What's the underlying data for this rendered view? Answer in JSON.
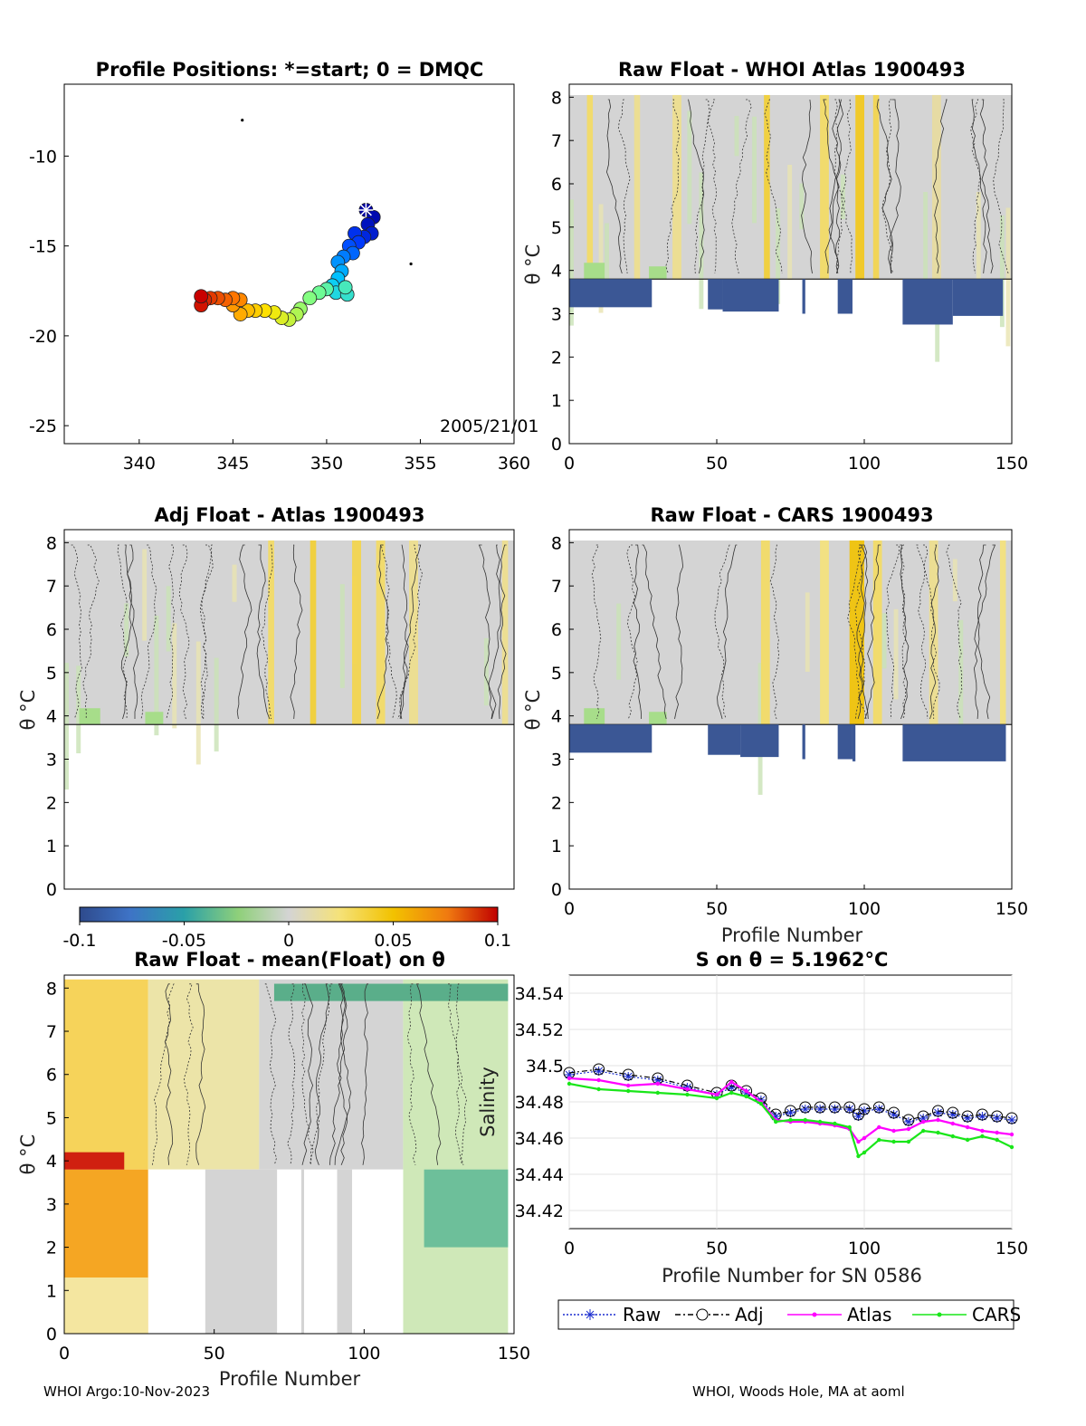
{
  "colors": {
    "cold": "#3b5795",
    "grey": "#d4d4d4",
    "raw": "#1a2ccf",
    "adj": "#000000",
    "atlas": "#ff00ff",
    "cars": "#19e619"
  },
  "footer": {
    "left": "WHOI Argo:10-Nov-2023",
    "right": "WHOI, Woods Hole, MA at aoml"
  },
  "colorbar": {
    "ticks": [
      "-0.1",
      "-0.05",
      "0",
      "0.05",
      "0.1"
    ],
    "range": [
      -0.1,
      0.1
    ]
  },
  "chart_data": [
    {
      "id": "map",
      "type": "scatter",
      "title": "Profile Positions: *=start; 0 = DMQC",
      "xlim": [
        336,
        360
      ],
      "ylim": [
        -26,
        -6
      ],
      "xticks": [
        "340",
        "345",
        "350",
        "355",
        "360"
      ],
      "yticks": [
        "-10",
        "-15",
        "-20",
        "-25"
      ],
      "annotation": "2005/21/01",
      "track": [
        [
          352.1,
          -13.0
        ],
        [
          352.5,
          -13.4
        ],
        [
          352.2,
          -13.8
        ],
        [
          352.4,
          -14.3
        ],
        [
          352.0,
          -14.5
        ],
        [
          351.5,
          -14.3
        ],
        [
          351.7,
          -14.8
        ],
        [
          351.2,
          -15.0
        ],
        [
          351.4,
          -15.4
        ],
        [
          350.9,
          -15.6
        ],
        [
          350.6,
          -15.9
        ],
        [
          350.8,
          -16.4
        ],
        [
          350.6,
          -16.8
        ],
        [
          350.3,
          -17.2
        ],
        [
          350.5,
          -17.6
        ],
        [
          351.1,
          -17.7
        ],
        [
          351.0,
          -17.3
        ],
        [
          350.0,
          -17.4
        ],
        [
          349.6,
          -17.6
        ],
        [
          349.1,
          -17.9
        ],
        [
          348.6,
          -18.5
        ],
        [
          348.4,
          -18.8
        ],
        [
          348.0,
          -19.1
        ],
        [
          347.6,
          -19.0
        ],
        [
          347.2,
          -18.7
        ],
        [
          346.7,
          -18.6
        ],
        [
          346.2,
          -18.6
        ],
        [
          345.8,
          -18.6
        ],
        [
          345.4,
          -18.8
        ],
        [
          345.0,
          -18.3
        ],
        [
          345.4,
          -18.0
        ],
        [
          345.0,
          -17.9
        ],
        [
          344.6,
          -18.0
        ],
        [
          344.2,
          -17.9
        ],
        [
          343.8,
          -17.9
        ],
        [
          343.5,
          -18.0
        ],
        [
          343.3,
          -18.3
        ],
        [
          343.3,
          -17.8
        ]
      ],
      "start": [
        352.1,
        -13.0
      ],
      "outliers": [
        [
          345.5,
          -8.0
        ],
        [
          354.5,
          -16.0
        ]
      ]
    },
    {
      "id": "p1",
      "type": "heatmap",
      "title": "Raw Float - WHOI Atlas  1900493",
      "ylabel": "θ °C",
      "xlim": [
        0,
        150
      ],
      "ylim": [
        0,
        8.3
      ],
      "xticks": [
        "0",
        "50",
        "100",
        "150"
      ],
      "yticks": [
        "0",
        "1",
        "2",
        "3",
        "4",
        "5",
        "6",
        "7",
        "8"
      ],
      "warm_cols": [
        [
          6,
          8,
          0.03
        ],
        [
          22,
          24,
          0.02
        ],
        [
          35,
          38,
          0.02
        ],
        [
          66,
          68,
          0.04
        ],
        [
          85,
          88,
          0.03
        ],
        [
          97,
          100,
          0.045
        ],
        [
          103,
          105,
          0.035
        ],
        [
          123,
          126,
          0.015
        ]
      ],
      "cold_top": 3.8,
      "cold_blocks": [
        [
          0,
          28,
          3.15
        ],
        [
          47,
          52,
          3.1
        ],
        [
          52,
          71,
          3.05
        ],
        [
          79,
          80,
          3.0
        ],
        [
          91,
          96,
          3.0
        ],
        [
          113,
          130,
          2.75
        ],
        [
          130,
          147,
          2.95
        ]
      ]
    },
    {
      "id": "p2",
      "type": "heatmap",
      "title": "Adj Float - Atlas  1900493",
      "ylabel": "θ °C",
      "xlim": [
        0,
        150
      ],
      "ylim": [
        0,
        8.3
      ],
      "xticks": [],
      "yticks": [
        "0",
        "1",
        "2",
        "3",
        "4",
        "5",
        "6",
        "7",
        "8"
      ],
      "warm_cols": [
        [
          68,
          70,
          0.03
        ],
        [
          82,
          84,
          0.04
        ],
        [
          96,
          99,
          0.035
        ],
        [
          104,
          107,
          0.03
        ],
        [
          115,
          118,
          0.02
        ],
        [
          146,
          148,
          0.02
        ]
      ],
      "cold_top": 3.8,
      "cold_blocks": []
    },
    {
      "id": "p3",
      "type": "heatmap",
      "title": "Raw Float - CARS  1900493",
      "ylabel": "θ °C",
      "xlabel": "Profile Number",
      "xlim": [
        0,
        150
      ],
      "ylim": [
        0,
        8.3
      ],
      "xticks": [
        "0",
        "50",
        "100",
        "150"
      ],
      "yticks": [
        "0",
        "1",
        "2",
        "3",
        "4",
        "5",
        "6",
        "7",
        "8"
      ],
      "warm_cols": [
        [
          65,
          68,
          0.03
        ],
        [
          85,
          88,
          0.025
        ],
        [
          95,
          100,
          0.05
        ],
        [
          103,
          106,
          0.03
        ],
        [
          122,
          125,
          0.02
        ],
        [
          146,
          148,
          0.025
        ]
      ],
      "cold_top": 3.8,
      "cold_blocks": [
        [
          0,
          28,
          3.15
        ],
        [
          47,
          58,
          3.1
        ],
        [
          58,
          71,
          3.05
        ],
        [
          79,
          80,
          3.0
        ],
        [
          91,
          96,
          3.0
        ],
        [
          96,
          97,
          2.95
        ],
        [
          113,
          148,
          2.95
        ]
      ]
    },
    {
      "id": "p4",
      "type": "heatmap",
      "title": "Raw Float - mean(Float) on θ",
      "ylabel": "θ °C",
      "xlabel": "Profile Number",
      "xlim": [
        0,
        150
      ],
      "ylim": [
        0,
        8.3
      ],
      "xticks": [
        "0",
        "50",
        "100",
        "150"
      ],
      "yticks": [
        "0",
        "1",
        "2",
        "3",
        "4",
        "5",
        "6",
        "7",
        "8"
      ],
      "gaps": [
        [
          28,
          47
        ],
        [
          71,
          79
        ],
        [
          80,
          91
        ],
        [
          96,
          113
        ]
      ]
    },
    {
      "id": "p5",
      "type": "line",
      "title": "S on θ = 5.1962°C",
      "xlabel": "Profile Number for SN 0586",
      "ylabel": "Salinity",
      "xlim": [
        0,
        150
      ],
      "ylim": [
        34.41,
        34.55
      ],
      "xticks": [
        "0",
        "50",
        "100",
        "150"
      ],
      "yticks": [
        "34.42",
        "34.44",
        "34.46",
        "34.48",
        "34.5",
        "34.52",
        "34.54"
      ],
      "x": [
        0,
        10,
        20,
        30,
        40,
        50,
        55,
        60,
        65,
        70,
        75,
        80,
        85,
        90,
        95,
        98,
        100,
        105,
        110,
        115,
        120,
        125,
        130,
        135,
        140,
        145,
        150
      ],
      "series": [
        {
          "name": "Raw",
          "values": [
            34.495,
            34.497,
            34.494,
            34.492,
            34.488,
            34.484,
            34.488,
            34.485,
            34.481,
            34.472,
            34.474,
            34.476,
            34.476,
            34.476,
            34.476,
            34.472,
            34.475,
            34.476,
            34.473,
            34.469,
            34.471,
            34.474,
            34.473,
            34.471,
            34.472,
            34.471,
            34.47
          ]
        },
        {
          "name": "Adj",
          "values": [
            34.496,
            34.498,
            34.495,
            34.493,
            34.489,
            34.485,
            34.489,
            34.486,
            34.482,
            34.473,
            34.475,
            34.477,
            34.477,
            34.477,
            34.477,
            34.473,
            34.476,
            34.477,
            34.474,
            34.47,
            34.472,
            34.475,
            34.474,
            34.472,
            34.473,
            34.472,
            34.471
          ]
        },
        {
          "name": "Atlas",
          "values": [
            34.493,
            34.492,
            34.489,
            34.49,
            34.487,
            34.484,
            34.491,
            34.486,
            34.48,
            34.47,
            34.469,
            34.469,
            34.468,
            34.467,
            34.465,
            34.458,
            34.46,
            34.466,
            34.464,
            34.465,
            34.469,
            34.47,
            34.468,
            34.466,
            34.464,
            34.463,
            34.462
          ]
        },
        {
          "name": "CARS",
          "values": [
            34.49,
            34.487,
            34.486,
            34.485,
            34.484,
            34.482,
            34.485,
            34.483,
            34.479,
            34.469,
            34.47,
            34.47,
            34.469,
            34.468,
            34.466,
            34.45,
            34.452,
            34.459,
            34.458,
            34.458,
            34.464,
            34.463,
            34.461,
            34.459,
            34.461,
            34.459,
            34.455
          ]
        }
      ]
    }
  ]
}
